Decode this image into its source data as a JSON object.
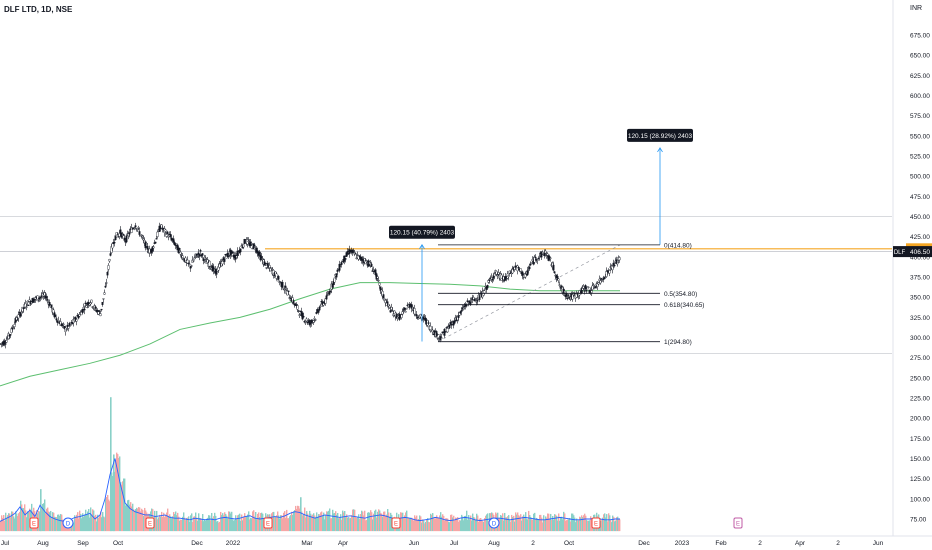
{
  "header": {
    "symbol_title": "DLF LTD, 1D, NSE",
    "currency": "INR"
  },
  "colors": {
    "up": "#131722",
    "down": "#131722",
    "ma": "#5cbf6f",
    "volume_up": "#89d0c7",
    "volume_down": "#f5a6a6",
    "volume_ma": "#2962ff",
    "orange_line": "#f5a623",
    "measure": "#2196f3",
    "label_bg": "#131722"
  },
  "chart_data": {
    "type": "candlestick",
    "symbol": "DLF",
    "last_price": "406.50",
    "price_axis": {
      "min": 75,
      "max": 675,
      "ticks": [
        "675.00",
        "650.00",
        "625.00",
        "600.00",
        "575.00",
        "550.00",
        "525.00",
        "500.00",
        "475.00",
        "450.00",
        "425.00",
        "400.00",
        "375.00",
        "350.00",
        "325.00",
        "300.00",
        "275.00",
        "250.00",
        "225.00",
        "200.00",
        "175.00",
        "150.00",
        "125.00",
        "100.00",
        "75.00"
      ]
    },
    "time_axis": [
      "Jul",
      "Aug",
      "Sep",
      "Oct",
      "Dec",
      "2022",
      "Mar",
      "Apr",
      "Jun",
      "Jul",
      "Aug",
      "2",
      "Oct",
      "Dec",
      "2023",
      "Feb",
      "2",
      "Apr",
      "2",
      "Jun"
    ],
    "price_path": [
      [
        0,
        292
      ],
      [
        5,
        295
      ],
      [
        10,
        305
      ],
      [
        15,
        320
      ],
      [
        20,
        330
      ],
      [
        25,
        340
      ],
      [
        30,
        345
      ],
      [
        35,
        348
      ],
      [
        40,
        350
      ],
      [
        45,
        352
      ],
      [
        50,
        340
      ],
      [
        55,
        325
      ],
      [
        60,
        318
      ],
      [
        65,
        310
      ],
      [
        70,
        315
      ],
      [
        75,
        322
      ],
      [
        80,
        330
      ],
      [
        85,
        340
      ],
      [
        90,
        345
      ],
      [
        95,
        335
      ],
      [
        100,
        330
      ],
      [
        105,
        360
      ],
      [
        110,
        405
      ],
      [
        115,
        425
      ],
      [
        120,
        430
      ],
      [
        125,
        420
      ],
      [
        130,
        432
      ],
      [
        135,
        440
      ],
      [
        140,
        428
      ],
      [
        145,
        415
      ],
      [
        150,
        405
      ],
      [
        155,
        420
      ],
      [
        160,
        438
      ],
      [
        165,
        430
      ],
      [
        170,
        425
      ],
      [
        175,
        415
      ],
      [
        180,
        405
      ],
      [
        185,
        395
      ],
      [
        190,
        388
      ],
      [
        195,
        400
      ],
      [
        200,
        405
      ],
      [
        205,
        395
      ],
      [
        210,
        390
      ],
      [
        215,
        380
      ],
      [
        220,
        390
      ],
      [
        225,
        400
      ],
      [
        230,
        405
      ],
      [
        235,
        400
      ],
      [
        240,
        410
      ],
      [
        245,
        420
      ],
      [
        250,
        415
      ],
      [
        255,
        412
      ],
      [
        260,
        400
      ],
      [
        265,
        390
      ],
      [
        270,
        385
      ],
      [
        275,
        378
      ],
      [
        280,
        368
      ],
      [
        285,
        360
      ],
      [
        290,
        350
      ],
      [
        295,
        340
      ],
      [
        300,
        330
      ],
      [
        305,
        322
      ],
      [
        310,
        318
      ],
      [
        315,
        325
      ],
      [
        320,
        340
      ],
      [
        325,
        345
      ],
      [
        330,
        360
      ],
      [
        335,
        375
      ],
      [
        340,
        390
      ],
      [
        345,
        400
      ],
      [
        350,
        408
      ],
      [
        355,
        402
      ],
      [
        360,
        398
      ],
      [
        365,
        395
      ],
      [
        370,
        390
      ],
      [
        375,
        380
      ],
      [
        380,
        360
      ],
      [
        385,
        345
      ],
      [
        390,
        335
      ],
      [
        395,
        328
      ],
      [
        400,
        325
      ],
      [
        405,
        335
      ],
      [
        410,
        342
      ],
      [
        415,
        330
      ],
      [
        420,
        325
      ],
      [
        425,
        322
      ],
      [
        430,
        312
      ],
      [
        435,
        305
      ],
      [
        440,
        300
      ],
      [
        445,
        308
      ],
      [
        450,
        315
      ],
      [
        455,
        322
      ],
      [
        460,
        330
      ],
      [
        465,
        340
      ],
      [
        470,
        345
      ],
      [
        475,
        348
      ],
      [
        480,
        350
      ],
      [
        485,
        360
      ],
      [
        490,
        372
      ],
      [
        495,
        380
      ],
      [
        500,
        375
      ],
      [
        505,
        372
      ],
      [
        510,
        380
      ],
      [
        515,
        388
      ],
      [
        520,
        382
      ],
      [
        525,
        375
      ],
      [
        530,
        390
      ],
      [
        535,
        398
      ],
      [
        540,
        402
      ],
      [
        545,
        405
      ],
      [
        550,
        395
      ],
      [
        555,
        380
      ],
      [
        560,
        362
      ],
      [
        565,
        354
      ],
      [
        570,
        350
      ],
      [
        575,
        352
      ],
      [
        580,
        356
      ],
      [
        585,
        362
      ],
      [
        590,
        358
      ],
      [
        595,
        364
      ],
      [
        600,
        370
      ],
      [
        605,
        378
      ],
      [
        610,
        385
      ],
      [
        615,
        392
      ],
      [
        620,
        398
      ]
    ],
    "moving_average": [
      [
        0,
        240
      ],
      [
        30,
        252
      ],
      [
        60,
        260
      ],
      [
        90,
        268
      ],
      [
        120,
        278
      ],
      [
        150,
        292
      ],
      [
        180,
        310
      ],
      [
        210,
        318
      ],
      [
        240,
        325
      ],
      [
        270,
        335
      ],
      [
        300,
        348
      ],
      [
        330,
        360
      ],
      [
        360,
        368
      ],
      [
        390,
        368
      ],
      [
        420,
        367
      ],
      [
        450,
        366
      ],
      [
        480,
        364
      ],
      [
        510,
        360
      ],
      [
        540,
        358
      ],
      [
        570,
        358
      ],
      [
        600,
        358
      ],
      [
        620,
        358
      ]
    ],
    "volume_series": [
      [
        0,
        72
      ],
      [
        5,
        75
      ],
      [
        10,
        78
      ],
      [
        15,
        82
      ],
      [
        20,
        90
      ],
      [
        25,
        80
      ],
      [
        30,
        86
      ],
      [
        35,
        78
      ],
      [
        40,
        92
      ],
      [
        45,
        84
      ],
      [
        50,
        78
      ],
      [
        55,
        75
      ],
      [
        60,
        73
      ],
      [
        65,
        72
      ],
      [
        70,
        74
      ],
      [
        75,
        77
      ],
      [
        80,
        78
      ],
      [
        85,
        80
      ],
      [
        90,
        82
      ],
      [
        95,
        75
      ],
      [
        100,
        80
      ],
      [
        105,
        100
      ],
      [
        110,
        130
      ],
      [
        115,
        150
      ],
      [
        120,
        120
      ],
      [
        125,
        95
      ],
      [
        130,
        88
      ],
      [
        135,
        84
      ],
      [
        140,
        82
      ],
      [
        145,
        80
      ],
      [
        150,
        80
      ],
      [
        155,
        78
      ],
      [
        160,
        79
      ],
      [
        165,
        80
      ],
      [
        170,
        77
      ],
      [
        175,
        76
      ],
      [
        180,
        76
      ],
      [
        185,
        75
      ],
      [
        190,
        74
      ],
      [
        195,
        76
      ],
      [
        200,
        75
      ],
      [
        205,
        74
      ],
      [
        210,
        75
      ],
      [
        215,
        74
      ],
      [
        220,
        76
      ],
      [
        225,
        77
      ],
      [
        230,
        76
      ],
      [
        235,
        75
      ],
      [
        240,
        76
      ],
      [
        245,
        78
      ],
      [
        250,
        79
      ],
      [
        255,
        76
      ],
      [
        260,
        75
      ],
      [
        265,
        76
      ],
      [
        270,
        77
      ],
      [
        275,
        78
      ],
      [
        280,
        77
      ],
      [
        285,
        79
      ],
      [
        290,
        82
      ],
      [
        295,
        84
      ],
      [
        300,
        83
      ],
      [
        305,
        80
      ],
      [
        310,
        78
      ],
      [
        315,
        76
      ],
      [
        320,
        78
      ],
      [
        325,
        80
      ],
      [
        330,
        79
      ],
      [
        335,
        78
      ],
      [
        340,
        77
      ],
      [
        345,
        78
      ],
      [
        350,
        79
      ],
      [
        355,
        78
      ],
      [
        360,
        77
      ],
      [
        365,
        76
      ],
      [
        370,
        78
      ],
      [
        375,
        79
      ],
      [
        380,
        80
      ],
      [
        385,
        79
      ],
      [
        390,
        77
      ],
      [
        395,
        75
      ],
      [
        400,
        76
      ],
      [
        405,
        77
      ],
      [
        410,
        76
      ],
      [
        415,
        74
      ],
      [
        420,
        73
      ],
      [
        425,
        74
      ],
      [
        430,
        75
      ],
      [
        435,
        77
      ],
      [
        440,
        76
      ],
      [
        445,
        74
      ],
      [
        450,
        73
      ],
      [
        455,
        74
      ],
      [
        460,
        76
      ],
      [
        465,
        77
      ],
      [
        470,
        76
      ],
      [
        475,
        74
      ],
      [
        480,
        73
      ],
      [
        485,
        74
      ],
      [
        490,
        75
      ],
      [
        495,
        76
      ],
      [
        500,
        76
      ],
      [
        505,
        75
      ],
      [
        510,
        74
      ],
      [
        515,
        75
      ],
      [
        520,
        76
      ],
      [
        525,
        77
      ],
      [
        530,
        76
      ],
      [
        535,
        75
      ],
      [
        540,
        74
      ],
      [
        545,
        74
      ],
      [
        550,
        75
      ],
      [
        555,
        76
      ],
      [
        560,
        77
      ],
      [
        565,
        76
      ],
      [
        570,
        75
      ],
      [
        575,
        74
      ],
      [
        580,
        74
      ],
      [
        585,
        75
      ],
      [
        590,
        75
      ],
      [
        595,
        76
      ],
      [
        600,
        75
      ],
      [
        605,
        74
      ],
      [
        610,
        74
      ],
      [
        615,
        75
      ],
      [
        620,
        75
      ]
    ],
    "volume_spikes": [
      [
        110,
        226
      ],
      [
        113,
        155
      ],
      [
        40,
        112
      ],
      [
        300,
        102
      ]
    ],
    "horizontal_levels": [
      {
        "price": 450,
        "kind": "resistance"
      },
      {
        "price": 280,
        "kind": "support"
      },
      {
        "price": 409.95,
        "kind": "orange"
      }
    ],
    "fib_levels": [
      {
        "label": "0(414.80)",
        "price": 414.8
      },
      {
        "label": "0.5(354.80)",
        "price": 354.8
      },
      {
        "label": "0.618(340.65)",
        "price": 340.65
      },
      {
        "label": "1(294.80)",
        "price": 294.8
      }
    ],
    "measurements": [
      {
        "label": "120.15 (40.79%) 2403",
        "x": 422,
        "from": 295,
        "to": 415
      },
      {
        "label": "120.15 (28.92%) 2403",
        "x": 660,
        "from": 415,
        "to": 535
      }
    ],
    "price_tags": [
      {
        "text": "409.95",
        "price": 409.95,
        "kind": "orange"
      },
      {
        "text": "406.50",
        "price": 406.5,
        "kind": "last"
      }
    ],
    "event_markers": [
      "E",
      "D",
      "E",
      "E",
      "E",
      "D",
      "E",
      "E",
      "E"
    ]
  }
}
